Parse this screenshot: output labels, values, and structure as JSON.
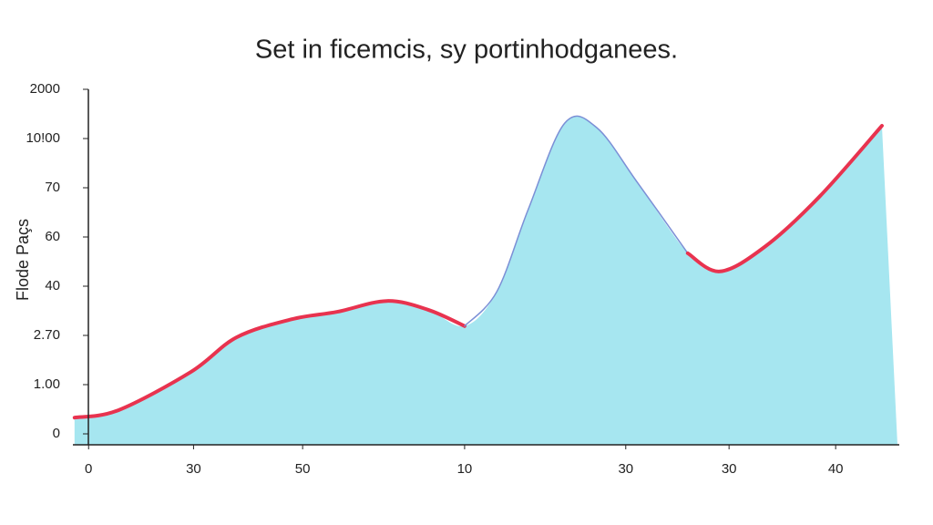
{
  "chart_data": {
    "type": "area",
    "title": "Set in ficemcis, sy portinhodganees.",
    "y_label": "Flode Paçs",
    "xlim": [
      0,
      100
    ],
    "ylim": [
      0,
      7
    ],
    "xticks": [
      {
        "value": 1.9,
        "label": "0"
      },
      {
        "value": 14.6,
        "label": "30"
      },
      {
        "value": 27.8,
        "label": "50"
      },
      {
        "value": 47.4,
        "label": "10"
      },
      {
        "value": 66.9,
        "label": "30"
      },
      {
        "value": 79.4,
        "label": "30"
      },
      {
        "value": 92.3,
        "label": "40"
      }
    ],
    "yticks": [
      {
        "value": 0,
        "label": "0"
      },
      {
        "value": 1,
        "label": "1.00"
      },
      {
        "value": 2,
        "label": "2.70"
      },
      {
        "value": 3,
        "label": "40"
      },
      {
        "value": 4,
        "label": "60"
      },
      {
        "value": 5,
        "label": "70"
      },
      {
        "value": 6,
        "label": "10!00"
      },
      {
        "value": 7,
        "label": "2000"
      }
    ],
    "x": [
      0.2,
      5.5,
      14.3,
      19.8,
      26.5,
      32,
      38,
      43,
      47.4,
      51.3,
      55.1,
      59.5,
      63.4,
      68.3,
      74.4,
      78.3,
      83.8,
      90.4,
      97.9
    ],
    "series": [
      {
        "color": "#e8334f",
        "fill": "#a6e6f0",
        "alt_color": "#7b8fd6",
        "alt_range": [
          8,
          14
        ],
        "values": [
          0.33,
          0.48,
          1.26,
          1.96,
          2.33,
          2.48,
          2.7,
          2.52,
          2.19,
          2.89,
          4.56,
          6.31,
          6.22,
          5.11,
          3.67,
          3.3,
          3.81,
          4.83,
          6.26
        ]
      }
    ]
  }
}
